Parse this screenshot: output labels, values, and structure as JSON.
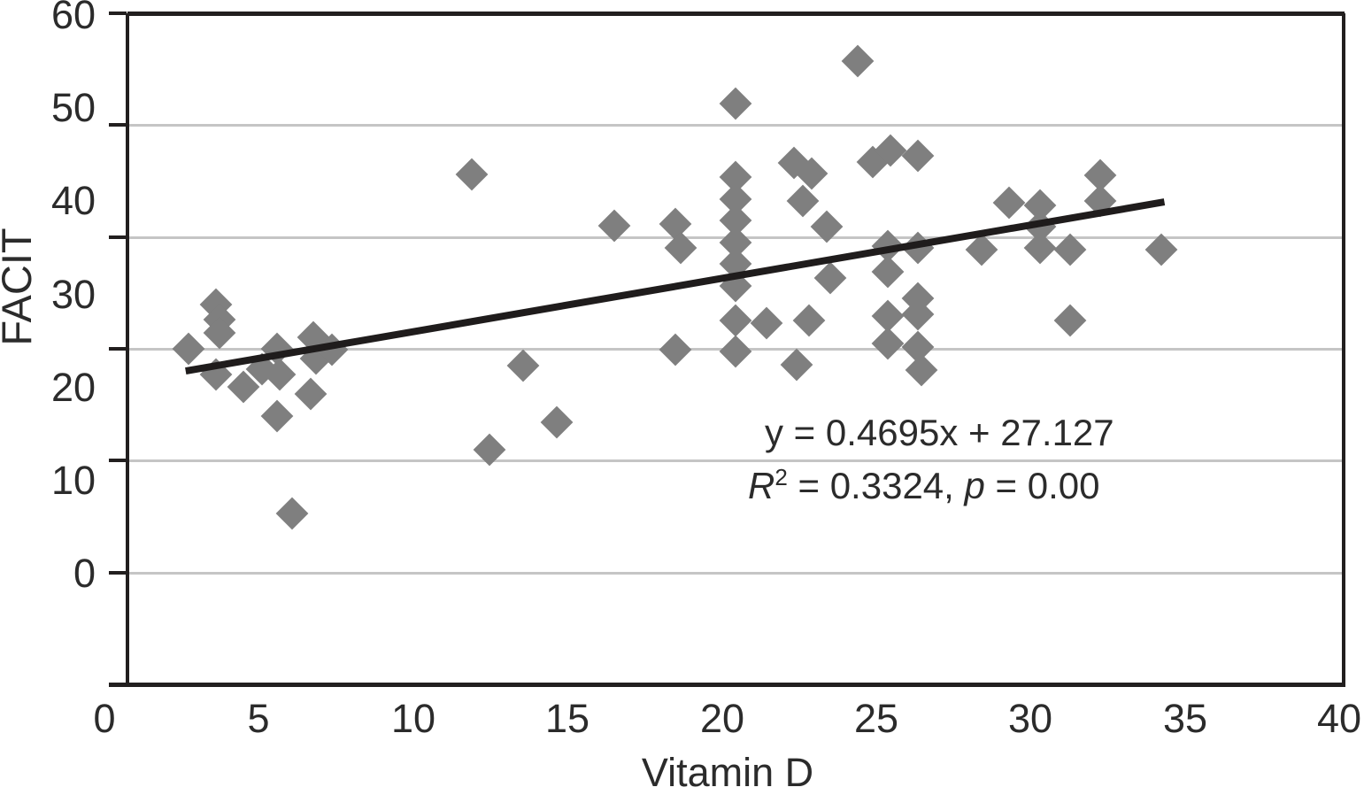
{
  "figure": {
    "y_axis_title": "FACIT",
    "x_axis_title": "Vitamin D",
    "annotation": {
      "equation": "y = 0.4695x + 27.127",
      "r_label": "R",
      "r_exponent": "2",
      "r_rest": " = 0.3324, ",
      "p_label": "p",
      "p_rest": " = 0.00"
    }
  },
  "chart_data": {
    "type": "scatter",
    "title": "",
    "xlabel": "Vitamin D",
    "ylabel": "FACIT",
    "xlim": [
      0,
      40
    ],
    "ylim": [
      0,
      60
    ],
    "grid": "horizontal gray gridlines",
    "legend": "none",
    "marker": "diamond",
    "marker_color": "#7f7f7f",
    "x_tick_labels": [
      "0",
      "5",
      "10",
      "15",
      "20",
      "25",
      "30",
      "35",
      "40"
    ],
    "y_tick_labels": [
      "60",
      "50",
      "40",
      "30",
      "20",
      "10",
      "0"
    ],
    "gridline_values": [
      50,
      40,
      30,
      20,
      10
    ],
    "tick_values": [
      60,
      50,
      40,
      30,
      20,
      10
    ],
    "trendline": {
      "slope": 0.4695,
      "intercept": 27.127,
      "x_start": 1.9,
      "x_end": 34.1,
      "equation": "y = 0.4695x + 27.127",
      "r_squared": 0.3324,
      "p_value": "0.00",
      "color": "#1f1c1c"
    },
    "points": [
      [
        2.0,
        30.0
      ],
      [
        2.9,
        34.0
      ],
      [
        3.0,
        32.6
      ],
      [
        3.0,
        31.4
      ],
      [
        2.9,
        27.7
      ],
      [
        3.8,
        26.6
      ],
      [
        4.4,
        28.2
      ],
      [
        4.9,
        30.0
      ],
      [
        5.0,
        27.7
      ],
      [
        6.1,
        31.0
      ],
      [
        6.2,
        29.1
      ],
      [
        6.7,
        29.9
      ],
      [
        6.0,
        26.0
      ],
      [
        4.9,
        24.0
      ],
      [
        5.4,
        15.3
      ],
      [
        11.3,
        45.6
      ],
      [
        11.9,
        21.0
      ],
      [
        13.0,
        28.5
      ],
      [
        14.1,
        23.4
      ],
      [
        16.0,
        41.0
      ],
      [
        18.0,
        41.2
      ],
      [
        18.2,
        39.0
      ],
      [
        18.0,
        29.9
      ],
      [
        20.0,
        51.9
      ],
      [
        20.0,
        45.4
      ],
      [
        20.0,
        43.4
      ],
      [
        20.0,
        41.5
      ],
      [
        20.0,
        39.5
      ],
      [
        20.0,
        37.6
      ],
      [
        20.0,
        35.6
      ],
      [
        20.0,
        32.5
      ],
      [
        20.0,
        29.8
      ],
      [
        21.0,
        32.3
      ],
      [
        21.9,
        46.6
      ],
      [
        22.5,
        45.7
      ],
      [
        22.2,
        43.2
      ],
      [
        22.0,
        28.6
      ],
      [
        23.0,
        40.9
      ],
      [
        23.1,
        36.3
      ],
      [
        22.4,
        32.5
      ],
      [
        24.0,
        55.7
      ],
      [
        24.5,
        46.7
      ],
      [
        25.1,
        47.7
      ],
      [
        26.0,
        47.3
      ],
      [
        25.0,
        39.2
      ],
      [
        26.0,
        39.0
      ],
      [
        28.1,
        38.9
      ],
      [
        25.0,
        36.9
      ],
      [
        26.0,
        34.5
      ],
      [
        26.0,
        33.1
      ],
      [
        25.0,
        32.9
      ],
      [
        25.0,
        30.5
      ],
      [
        26.0,
        30.2
      ],
      [
        26.1,
        28.1
      ],
      [
        29.0,
        43.1
      ],
      [
        30.0,
        42.8
      ],
      [
        30.0,
        40.9
      ],
      [
        30.0,
        39.0
      ],
      [
        31.0,
        38.9
      ],
      [
        32.0,
        45.5
      ],
      [
        32.0,
        43.2
      ],
      [
        34.0,
        38.9
      ],
      [
        31.0,
        32.5
      ]
    ]
  }
}
